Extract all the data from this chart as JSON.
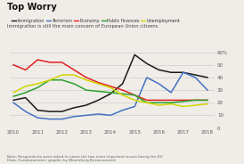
{
  "title": "Top Worry",
  "subtitle": "Immigration is still the main concern of European Union citizens",
  "note": "Note: Respondents were asked to name the two most important issues facing the EU\nData: Eurobarometer; graphic by Bloomberg Businessweek",
  "years": [
    2010,
    2010.5,
    2011,
    2011.5,
    2012,
    2012.5,
    2013,
    2013.5,
    2014,
    2014.5,
    2015,
    2015.5,
    2016,
    2016.5,
    2017,
    2017.5,
    2018
  ],
  "immigration": [
    22,
    24,
    14,
    13,
    13,
    16,
    18,
    22,
    27,
    35,
    58,
    51,
    46,
    44,
    44,
    42,
    40
  ],
  "terrorism": [
    20,
    13,
    8,
    7,
    7,
    9,
    10,
    11,
    10,
    14,
    17,
    40,
    35,
    28,
    44,
    40,
    30
  ],
  "economy": [
    50,
    46,
    54,
    52,
    52,
    46,
    40,
    36,
    33,
    30,
    26,
    22,
    22,
    22,
    22,
    22,
    22
  ],
  "public_fin": [
    25,
    28,
    32,
    38,
    38,
    35,
    30,
    29,
    28,
    27,
    26,
    20,
    20,
    20,
    21,
    22,
    22
  ],
  "unemployment": [
    28,
    33,
    35,
    38,
    42,
    42,
    38,
    35,
    32,
    26,
    22,
    20,
    18,
    19,
    17,
    18,
    19
  ],
  "immigration_color": "#1a1a1a",
  "terrorism_color": "#4472c4",
  "economy_color": "#e02020",
  "public_fin_color": "#2ca02c",
  "unemployment_color": "#d4d400",
  "ylim": [
    0,
    65
  ],
  "yticks": [
    0,
    10,
    20,
    30,
    40,
    50,
    60
  ],
  "ytick_labels": [
    "0",
    "10",
    "20",
    "30",
    "40",
    "50",
    "60%"
  ],
  "xticks": [
    2010,
    2011,
    2012,
    2013,
    2014,
    2015,
    2016,
    2017,
    2018
  ],
  "xtick_labels": [
    "2010",
    "2011",
    "2012",
    "2013",
    "2014",
    "2015",
    "2016",
    "2017",
    "2018"
  ],
  "background_color": "#f0ede8",
  "grid_color": "#cccccc",
  "legend_labels": [
    "Immigration",
    "Terrorism",
    "Economy",
    "Public finances",
    "Unemployment"
  ]
}
